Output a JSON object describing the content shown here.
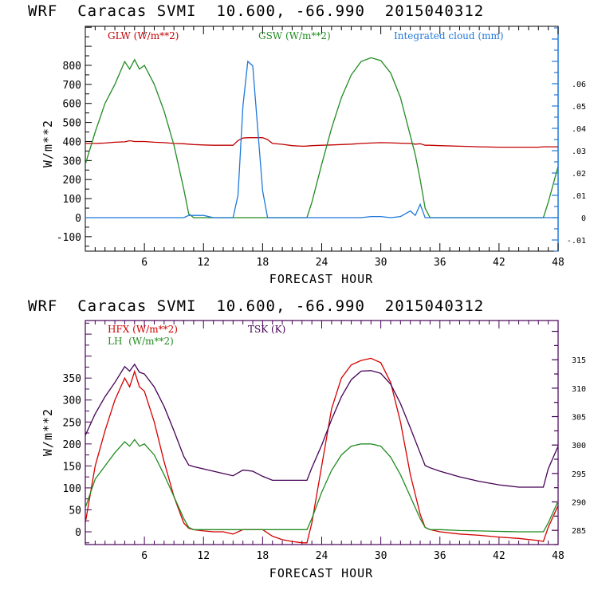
{
  "chart_data": [
    {
      "type": "line",
      "title": "WRF  Caracas SVMI  10.600, -66.990  2015040312",
      "xlabel": "FORECAST HOUR",
      "ylabel": "W/m**2",
      "xlim": [
        0,
        48
      ],
      "ylim": [
        -176,
        1005
      ],
      "y2lim": [
        -0.015,
        0.0857
      ],
      "x_ticks": [
        6,
        12,
        18,
        24,
        30,
        36,
        42,
        48
      ],
      "x_tick_labels": [
        "6",
        "12",
        "18",
        "24",
        "30",
        "36",
        "42",
        "48"
      ],
      "y_ticks": [
        -100,
        0,
        100,
        200,
        300,
        400,
        500,
        600,
        700,
        800
      ],
      "y_tick_labels": [
        "-100",
        "0",
        "100",
        "200",
        "300",
        "400",
        "500",
        "600",
        "700",
        "800"
      ],
      "y2_ticks": [
        -0.01,
        0,
        0.01,
        0.02,
        0.03,
        0.04,
        0.05,
        0.06
      ],
      "y2_tick_labels": [
        "-.01",
        "0",
        ".01",
        ".02",
        ".03",
        ".04",
        ".05",
        ".06"
      ],
      "grid": false,
      "legend_placement": "top",
      "x": [
        0,
        1,
        2,
        3,
        4,
        4.5,
        5,
        5.5,
        6,
        7,
        8,
        9,
        10,
        10.5,
        11,
        12,
        13,
        14,
        15,
        15.5,
        16,
        16.5,
        17,
        17.5,
        18,
        18.5,
        19,
        20,
        21,
        22,
        22.5,
        23,
        24,
        25,
        26,
        27,
        28,
        29,
        30,
        31,
        32,
        33,
        33.5,
        34,
        34.5,
        35,
        36,
        38,
        40,
        42,
        44,
        46,
        46.5,
        47,
        48
      ],
      "series": [
        {
          "name": "GLW (W/m**2)",
          "axis": "left",
          "color": "#c00000",
          "values": [
            390,
            390,
            392,
            396,
            398,
            404,
            400,
            400,
            400,
            396,
            394,
            390,
            388,
            386,
            384,
            382,
            380,
            380,
            380,
            405,
            418,
            420,
            420,
            420,
            420,
            410,
            390,
            385,
            378,
            375,
            376,
            378,
            380,
            382,
            384,
            386,
            390,
            392,
            394,
            393,
            391,
            390,
            386,
            388,
            380,
            380,
            378,
            375,
            372,
            370,
            370,
            370,
            372,
            372,
            372
          ]
        },
        {
          "name": "GSW (W/m**2)",
          "axis": "left",
          "color": "#228b22",
          "values": [
            280,
            450,
            600,
            700,
            820,
            780,
            830,
            780,
            800,
            700,
            560,
            380,
            150,
            20,
            0,
            0,
            0,
            0,
            0,
            0,
            0,
            0,
            0,
            0,
            0,
            0,
            0,
            0,
            0,
            0,
            0,
            80,
            280,
            470,
            630,
            750,
            820,
            840,
            825,
            760,
            630,
            430,
            330,
            200,
            50,
            0,
            0,
            0,
            0,
            0,
            0,
            0,
            0,
            80,
            270
          ]
        },
        {
          "name": "Integrated cloud (mm)",
          "axis": "right",
          "color": "#1e78dc",
          "values": [
            0,
            0,
            0,
            0,
            0,
            0,
            0,
            0,
            0,
            0,
            0,
            0,
            0,
            0.001,
            0.001,
            0.001,
            0,
            0,
            0,
            0.01,
            0.05,
            0.07,
            0.068,
            0.04,
            0.012,
            0,
            0,
            0,
            0,
            0,
            0,
            0,
            0,
            0,
            0,
            0,
            0,
            0.0005,
            0.0005,
            0,
            0.0005,
            0.003,
            0.001,
            0.006,
            0,
            0,
            0,
            0,
            0,
            0,
            0,
            0,
            0,
            0,
            0
          ]
        }
      ]
    },
    {
      "type": "line",
      "title": "WRF  Caracas SVMI  10.600, -66.990  2015040312",
      "xlabel": "FORECAST HOUR",
      "ylabel": "W/m**2",
      "xlim": [
        0,
        48
      ],
      "ylim": [
        -29,
        481
      ],
      "y2lim": [
        282.5,
        321.9
      ],
      "x_ticks": [
        6,
        12,
        18,
        24,
        30,
        36,
        42,
        48
      ],
      "x_tick_labels": [
        "6",
        "12",
        "18",
        "24",
        "30",
        "36",
        "42",
        "48"
      ],
      "y_ticks": [
        0,
        50,
        100,
        150,
        200,
        250,
        300,
        350
      ],
      "y_tick_labels": [
        "0",
        "50",
        "100",
        "150",
        "200",
        "250",
        "300",
        "350"
      ],
      "y2_ticks": [
        285,
        290,
        295,
        300,
        305,
        310,
        315
      ],
      "y2_tick_labels": [
        "285",
        "290",
        "295",
        "300",
        "305",
        "310",
        "315"
      ],
      "grid": false,
      "legend_placement": "top-left",
      "x": [
        0,
        1,
        2,
        3,
        4,
        4.5,
        5,
        5.5,
        6,
        7,
        8,
        9,
        10,
        10.5,
        11,
        12,
        13,
        14,
        15,
        16,
        17,
        18,
        19,
        20,
        21,
        22,
        22.5,
        23,
        24,
        25,
        26,
        27,
        28,
        29,
        30,
        31,
        32,
        33,
        34,
        34.5,
        35,
        36,
        38,
        40,
        42,
        44,
        46,
        46.5,
        47,
        48
      ],
      "series": [
        {
          "name": "HFX (W/m**2)",
          "axis": "left",
          "color": "#d40000",
          "values": [
            20,
            150,
            230,
            300,
            350,
            330,
            365,
            330,
            320,
            250,
            160,
            80,
            20,
            8,
            5,
            2,
            0,
            0,
            -5,
            5,
            5,
            5,
            -10,
            -18,
            -22,
            -25,
            -25,
            20,
            150,
            280,
            350,
            380,
            390,
            395,
            385,
            340,
            250,
            130,
            40,
            10,
            5,
            0,
            -5,
            -8,
            -12,
            -15,
            -20,
            -22,
            10,
            60
          ]
        },
        {
          "name": "LH (W/m**2)",
          "axis": "left",
          "color": "#228b22",
          "values": [
            55,
            120,
            150,
            180,
            205,
            195,
            210,
            195,
            200,
            175,
            130,
            80,
            30,
            10,
            5,
            5,
            5,
            5,
            5,
            5,
            5,
            5,
            5,
            5,
            5,
            5,
            5,
            30,
            90,
            140,
            175,
            195,
            200,
            200,
            195,
            170,
            130,
            80,
            30,
            10,
            5,
            5,
            3,
            2,
            1,
            0,
            0,
            0,
            20,
            70
          ]
        },
        {
          "name": "TSK (K)",
          "axis": "right",
          "color": "#440055",
          "values": [
            301.7,
            305.5,
            308.5,
            311.0,
            313.8,
            313.0,
            314.2,
            312.8,
            312.5,
            310.2,
            306.8,
            302.5,
            298.0,
            296.5,
            296.2,
            295.8,
            295.4,
            295.0,
            294.6,
            295.6,
            295.4,
            294.5,
            293.8,
            293.8,
            293.8,
            293.8,
            293.8,
            296.0,
            300.0,
            304.5,
            308.5,
            311.5,
            313.0,
            313.1,
            312.6,
            310.7,
            307.3,
            303.0,
            298.6,
            296.4,
            296.0,
            295.4,
            294.4,
            293.6,
            293.0,
            292.6,
            292.6,
            292.6,
            295.8,
            299.8
          ]
        }
      ]
    }
  ],
  "panels": [
    {
      "title": "WRF  Caracas SVMI  10.600, -66.990  2015040312",
      "xlabel": "FORECAST HOUR",
      "ylabel": "W/m**2",
      "legend": [
        "GLW (W/m**2)",
        "GSW (W/m**2)",
        "Integrated cloud (mm)"
      ]
    },
    {
      "title": "WRF  Caracas SVMI  10.600, -66.990  2015040312",
      "xlabel": "FORECAST HOUR",
      "ylabel": "W/m**2",
      "legend": [
        "HFX (W/m**2)",
        "LH  (W/m**2)",
        "TSK (K)"
      ]
    }
  ]
}
